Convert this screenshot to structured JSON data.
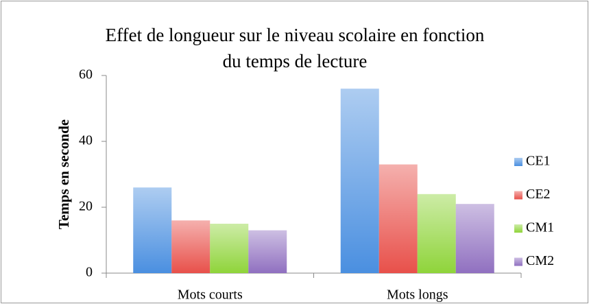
{
  "chart_data": {
    "type": "bar",
    "title": "Effet de longueur sur le niveau scolaire en fonction du temps de lecture",
    "y_label": "Temps en seconde",
    "categories": [
      "Mots courts",
      "Mots longs"
    ],
    "series": [
      {
        "name": "CE1",
        "color": "#4a8fe0",
        "values": [
          26,
          56
        ]
      },
      {
        "name": "CE2",
        "color": "#e8504a",
        "values": [
          16,
          33
        ]
      },
      {
        "name": "CM1",
        "color": "#8fd43a",
        "values": [
          15,
          24
        ]
      },
      {
        "name": "CM2",
        "color": "#9070c0",
        "values": [
          13,
          21
        ]
      }
    ],
    "ylim": [
      0,
      60
    ],
    "yticks": [
      0,
      20,
      40,
      60
    ],
    "grid": false,
    "legend": "right"
  }
}
